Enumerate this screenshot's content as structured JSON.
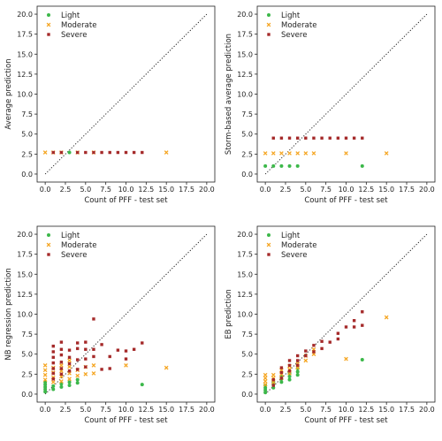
{
  "legend_labels": [
    "Light",
    "Moderate",
    "Severe"
  ],
  "colors": {
    "Light": "#3cb84a",
    "Moderate": "#f5a623",
    "Severe": "#a52a2a"
  },
  "chart_data": [
    {
      "type": "scatter",
      "xlabel": "Count of PFF - test set",
      "ylabel": "Average prediction",
      "xlim": [
        -1,
        21
      ],
      "ylim": [
        -1,
        21
      ],
      "ticks": [
        "0.0",
        "2.5",
        "5.0",
        "7.5",
        "10.0",
        "12.5",
        "15.0",
        "17.5",
        "20.0"
      ],
      "reference_line": "y = x (dotted)",
      "legend_position": "top-left",
      "series": [
        {
          "name": "Light",
          "marker": "circle",
          "points": [
            [
              3,
              2.7
            ]
          ]
        },
        {
          "name": "Moderate",
          "marker": "x",
          "points": [
            [
              0,
              2.7
            ],
            [
              1,
              2.7
            ],
            [
              2,
              2.7
            ],
            [
              4,
              2.7
            ],
            [
              6,
              2.7
            ],
            [
              15,
              2.7
            ]
          ]
        },
        {
          "name": "Severe",
          "marker": "square",
          "points": [
            [
              1,
              2.7
            ],
            [
              2,
              2.7
            ],
            [
              4,
              2.7
            ],
            [
              5,
              2.7
            ],
            [
              6,
              2.7
            ],
            [
              7,
              2.7
            ],
            [
              8,
              2.7
            ],
            [
              9,
              2.7
            ],
            [
              10,
              2.7
            ],
            [
              11,
              2.7
            ],
            [
              12,
              2.7
            ]
          ]
        }
      ]
    },
    {
      "type": "scatter",
      "xlabel": "Count of PFF - test set",
      "ylabel": "Storm-based average prediction",
      "xlim": [
        -1,
        21
      ],
      "ylim": [
        -1,
        21
      ],
      "ticks": [
        "0.0",
        "2.5",
        "5.0",
        "7.5",
        "10.0",
        "12.5",
        "15.0",
        "17.5",
        "20.0"
      ],
      "reference_line": "y = x (dotted)",
      "legend_position": "top-left",
      "series": [
        {
          "name": "Light",
          "marker": "circle",
          "points": [
            [
              0,
              1.0
            ],
            [
              1,
              1.0
            ],
            [
              2,
              1.0
            ],
            [
              3,
              1.0
            ],
            [
              4,
              1.0
            ],
            [
              12,
              1.0
            ]
          ]
        },
        {
          "name": "Moderate",
          "marker": "x",
          "points": [
            [
              0,
              2.6
            ],
            [
              1,
              2.6
            ],
            [
              2,
              2.6
            ],
            [
              3,
              2.6
            ],
            [
              4,
              2.6
            ],
            [
              5,
              2.6
            ],
            [
              6,
              2.6
            ],
            [
              10,
              2.6
            ],
            [
              15,
              2.6
            ]
          ]
        },
        {
          "name": "Severe",
          "marker": "square",
          "points": [
            [
              1,
              4.5
            ],
            [
              2,
              4.5
            ],
            [
              3,
              4.5
            ],
            [
              4,
              4.5
            ],
            [
              5,
              4.5
            ],
            [
              6,
              4.5
            ],
            [
              7,
              4.5
            ],
            [
              8,
              4.5
            ],
            [
              9,
              4.5
            ],
            [
              10,
              4.5
            ],
            [
              11,
              4.5
            ],
            [
              12,
              4.5
            ]
          ]
        }
      ]
    },
    {
      "type": "scatter",
      "xlabel": "Count of PFF - test set",
      "ylabel": "NB regression prediction",
      "xlim": [
        -1,
        21
      ],
      "ylim": [
        -1,
        21
      ],
      "ticks": [
        "0.0",
        "2.5",
        "5.0",
        "7.5",
        "10.0",
        "12.5",
        "15.0",
        "17.5",
        "20.0"
      ],
      "reference_line": "y = x (dotted)",
      "legend_position": "top-left",
      "series": [
        {
          "name": "Light",
          "marker": "circle",
          "points": [
            [
              0,
              0.3
            ],
            [
              0,
              0.6
            ],
            [
              0,
              0.9
            ],
            [
              0,
              1.2
            ],
            [
              0,
              1.5
            ],
            [
              1,
              0.6
            ],
            [
              1,
              1.0
            ],
            [
              2,
              0.9
            ],
            [
              2,
              1.3
            ],
            [
              3,
              1.1
            ],
            [
              3,
              1.5
            ],
            [
              4,
              1.4
            ],
            [
              4,
              1.8
            ],
            [
              12,
              1.2
            ]
          ]
        },
        {
          "name": "Moderate",
          "marker": "x",
          "points": [
            [
              0,
              1.8
            ],
            [
              0,
              2.4
            ],
            [
              0,
              3.0
            ],
            [
              0,
              3.6
            ],
            [
              1,
              1.5
            ],
            [
              1,
              2.1
            ],
            [
              1,
              2.7
            ],
            [
              1,
              3.3
            ],
            [
              2,
              1.6
            ],
            [
              2,
              2.2
            ],
            [
              2,
              2.9
            ],
            [
              2,
              3.6
            ],
            [
              3,
              1.9
            ],
            [
              3,
              2.6
            ],
            [
              3,
              3.4
            ],
            [
              3,
              4.2
            ],
            [
              4,
              2.3
            ],
            [
              4,
              3.0
            ],
            [
              5,
              2.5
            ],
            [
              5,
              3.4
            ],
            [
              6,
              2.6
            ],
            [
              6,
              3.6
            ],
            [
              10,
              3.6
            ],
            [
              15,
              3.3
            ]
          ]
        },
        {
          "name": "Severe",
          "marker": "square",
          "points": [
            [
              1,
              1.9
            ],
            [
              1,
              2.6
            ],
            [
              1,
              3.2
            ],
            [
              1,
              3.9
            ],
            [
              1,
              4.6
            ],
            [
              1,
              5.3
            ],
            [
              1,
              6.0
            ],
            [
              2,
              2.5
            ],
            [
              2,
              3.2
            ],
            [
              2,
              4.0
            ],
            [
              2,
              4.9
            ],
            [
              2,
              5.6
            ],
            [
              2,
              6.5
            ],
            [
              3,
              2.9
            ],
            [
              3,
              3.8
            ],
            [
              3,
              4.6
            ],
            [
              3,
              5.5
            ],
            [
              4,
              3.1
            ],
            [
              4,
              4.3
            ],
            [
              4,
              5.7
            ],
            [
              4,
              6.4
            ],
            [
              5,
              3.4
            ],
            [
              5,
              4.4
            ],
            [
              5,
              5.6
            ],
            [
              5,
              6.5
            ],
            [
              6,
              4.7
            ],
            [
              6,
              5.6
            ],
            [
              6,
              9.4
            ],
            [
              7,
              3.1
            ],
            [
              7,
              6.2
            ],
            [
              8,
              3.2
            ],
            [
              8,
              4.7
            ],
            [
              9,
              5.5
            ],
            [
              10,
              5.4
            ],
            [
              10,
              4.4
            ],
            [
              11,
              5.6
            ],
            [
              12,
              6.4
            ]
          ]
        }
      ]
    },
    {
      "type": "scatter",
      "xlabel": "Count of PFF - test set",
      "ylabel": "EB prediction",
      "xlim": [
        -1,
        21
      ],
      "ylim": [
        -1,
        21
      ],
      "ticks": [
        "0.0",
        "2.5",
        "5.0",
        "7.5",
        "10.0",
        "12.5",
        "15.0",
        "17.5",
        "20.0"
      ],
      "reference_line": "y = x (dotted)",
      "legend_position": "top-left",
      "series": [
        {
          "name": "Light",
          "marker": "circle",
          "points": [
            [
              0,
              0.2
            ],
            [
              0,
              0.5
            ],
            [
              0,
              0.8
            ],
            [
              0,
              1.1
            ],
            [
              1,
              0.8
            ],
            [
              1,
              1.2
            ],
            [
              1,
              1.5
            ],
            [
              2,
              1.5
            ],
            [
              2,
              1.9
            ],
            [
              2,
              2.2
            ],
            [
              3,
              1.8
            ],
            [
              3,
              2.2
            ],
            [
              3,
              2.6
            ],
            [
              4,
              2.4
            ],
            [
              4,
              2.8
            ],
            [
              4,
              3.2
            ],
            [
              12,
              4.3
            ]
          ]
        },
        {
          "name": "Moderate",
          "marker": "x",
          "points": [
            [
              0,
              1.2
            ],
            [
              0,
              1.6
            ],
            [
              0,
              2.0
            ],
            [
              0,
              2.4
            ],
            [
              1,
              1.5
            ],
            [
              1,
              2.0
            ],
            [
              1,
              2.4
            ],
            [
              2,
              2.0
            ],
            [
              2,
              2.5
            ],
            [
              2,
              3.0
            ],
            [
              3,
              2.6
            ],
            [
              3,
              3.1
            ],
            [
              3,
              3.5
            ],
            [
              4,
              3.3
            ],
            [
              4,
              3.8
            ],
            [
              5,
              4.2
            ],
            [
              5,
              4.8
            ],
            [
              6,
              5.0
            ],
            [
              6,
              5.6
            ],
            [
              10,
              4.4
            ],
            [
              15,
              9.6
            ]
          ]
        },
        {
          "name": "Severe",
          "marker": "square",
          "points": [
            [
              1,
              1.1
            ],
            [
              1,
              1.8
            ],
            [
              2,
              2.0
            ],
            [
              2,
              2.7
            ],
            [
              2,
              3.3
            ],
            [
              3,
              2.9
            ],
            [
              3,
              3.6
            ],
            [
              3,
              4.2
            ],
            [
              4,
              3.6
            ],
            [
              4,
              4.2
            ],
            [
              4,
              4.8
            ],
            [
              5,
              4.8
            ],
            [
              5,
              5.4
            ],
            [
              6,
              5.3
            ],
            [
              6,
              6.1
            ],
            [
              7,
              5.7
            ],
            [
              7,
              6.6
            ],
            [
              8,
              6.5
            ],
            [
              9,
              6.9
            ],
            [
              9,
              7.6
            ],
            [
              10,
              8.4
            ],
            [
              11,
              8.4
            ],
            [
              11,
              9.2
            ],
            [
              12,
              10.3
            ],
            [
              12,
              8.6
            ]
          ]
        }
      ]
    }
  ]
}
